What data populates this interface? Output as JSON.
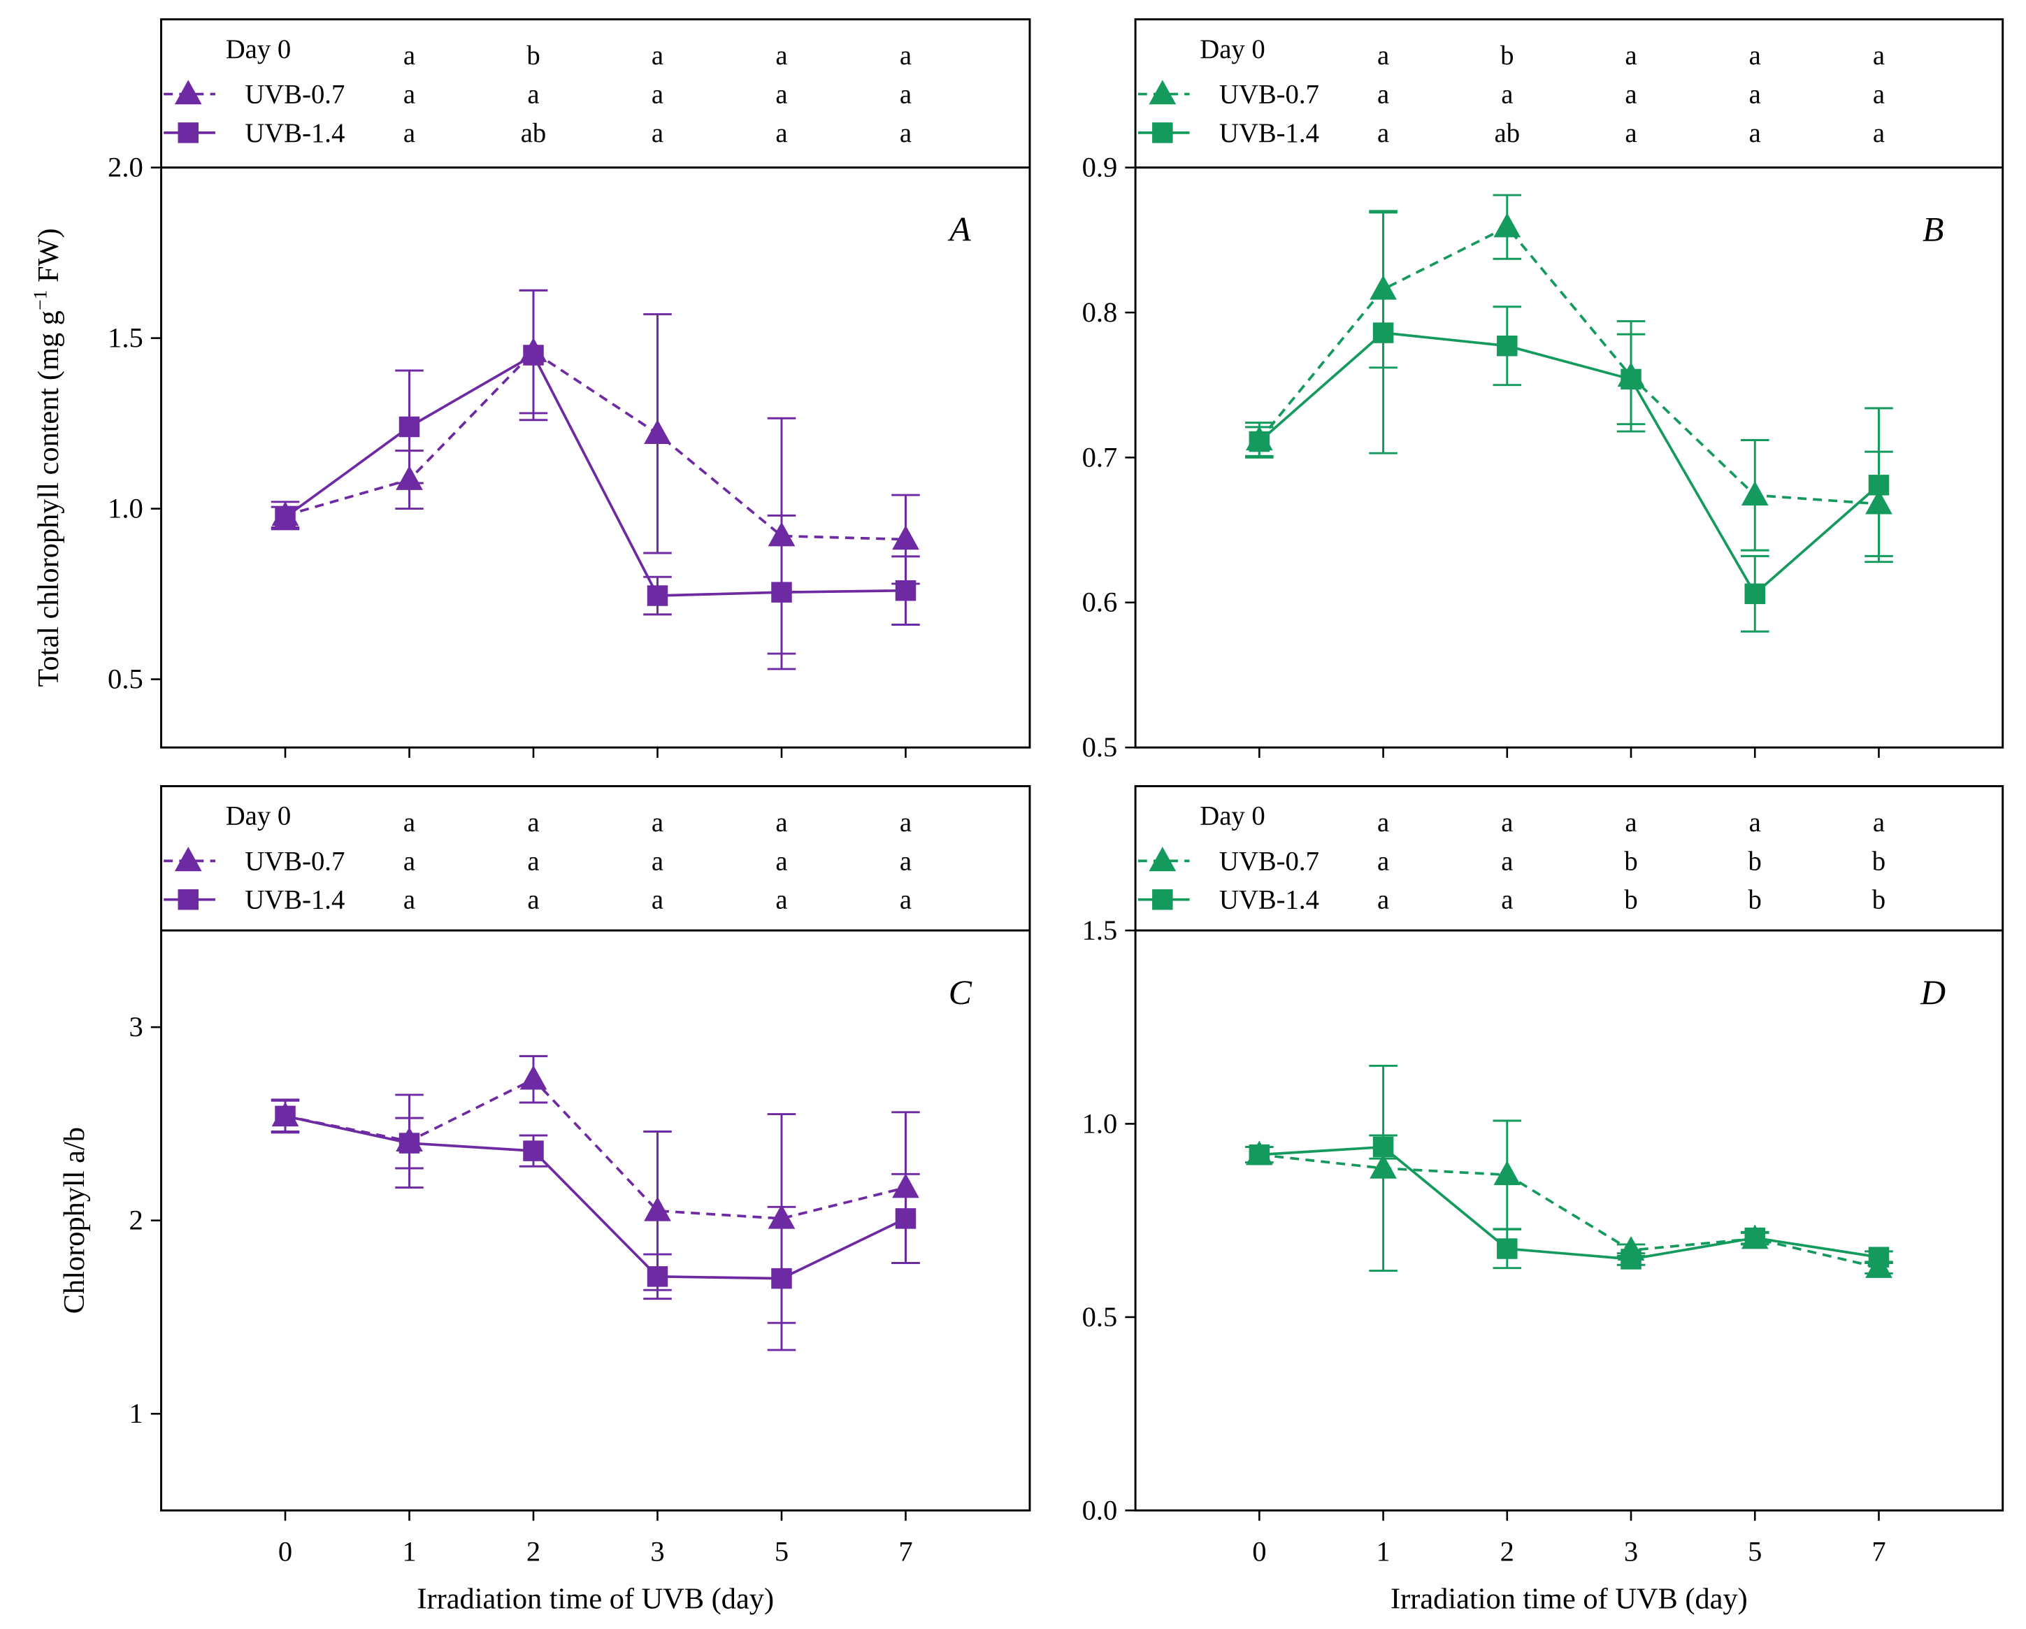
{
  "chart_data": [
    {
      "panel": "A",
      "type": "line",
      "ylabel_parts": [
        "Total chlorophyll content (mg g",
        "−1",
        " FW)"
      ],
      "ylim": [
        0.3,
        2.0
      ],
      "yticks": [
        "0.5",
        "1.0",
        "1.5",
        "2.0"
      ],
      "x": [
        0,
        1,
        2,
        3,
        5,
        7
      ],
      "header": {
        "day0_label": "Day 0",
        "day0_letters": [
          "a",
          "b",
          "a",
          "a",
          "a"
        ]
      },
      "series": [
        {
          "name": "UVB-0.7",
          "marker_icon": "triangle",
          "dashed": true,
          "color": "#6E2AA3",
          "values": [
            0.98,
            1.085,
            1.46,
            1.22,
            0.92,
            0.91
          ],
          "errors": [
            0.04,
            0.085,
            0.18,
            0.35,
            0.345,
            0.13
          ],
          "letters": [
            "a",
            "a",
            "a",
            "a",
            "a"
          ]
        },
        {
          "name": "UVB-1.4",
          "marker_icon": "square",
          "dashed": false,
          "color": "#6E2AA3",
          "values": [
            0.975,
            1.24,
            1.45,
            0.745,
            0.755,
            0.76
          ],
          "errors": [
            0.03,
            0.165,
            0.19,
            0.055,
            0.225,
            0.1
          ],
          "letters": [
            "a",
            "ab",
            "a",
            "a",
            "a"
          ]
        }
      ]
    },
    {
      "panel": "B",
      "type": "line",
      "ylim": [
        0.5,
        0.9
      ],
      "yticks": [
        "0.5",
        "0.6",
        "0.7",
        "0.8",
        "0.9"
      ],
      "x": [
        0,
        1,
        2,
        3,
        5,
        7
      ],
      "header": {
        "day0_label": "Day 0",
        "day0_letters": [
          "a",
          "b",
          "a",
          "a",
          "a"
        ]
      },
      "series": [
        {
          "name": "UVB-0.7",
          "marker_icon": "triangle",
          "dashed": true,
          "color": "#139A5C",
          "values": [
            0.712,
            0.816,
            0.859,
            0.756,
            0.674,
            0.668
          ],
          "errors": [
            0.012,
            0.054,
            0.022,
            0.038,
            0.038,
            0.036
          ],
          "letters": [
            "a",
            "a",
            "a",
            "a",
            "a"
          ]
        },
        {
          "name": "UVB-1.4",
          "marker_icon": "square",
          "dashed": false,
          "color": "#139A5C",
          "values": [
            0.711,
            0.786,
            0.777,
            0.754,
            0.606,
            0.681
          ],
          "errors": [
            0.01,
            0.083,
            0.027,
            0.031,
            0.026,
            0.053
          ],
          "letters": [
            "a",
            "ab",
            "a",
            "a",
            "a"
          ]
        }
      ]
    },
    {
      "panel": "C",
      "type": "line",
      "ylabel_parts": [
        "Chlorophyll a/b"
      ],
      "xlabel": "Irradiation time of UVB (day)",
      "ylim": [
        0.5,
        3.5
      ],
      "yticks": [
        "1",
        "2",
        "3"
      ],
      "x": [
        0,
        1,
        2,
        3,
        5,
        7
      ],
      "x_tick_labels": [
        "0",
        "1",
        "2",
        "3",
        "5",
        "7"
      ],
      "header": {
        "day0_label": "Day 0",
        "day0_letters": [
          "a",
          "a",
          "a",
          "a",
          "a"
        ]
      },
      "series": [
        {
          "name": "UVB-0.7",
          "marker_icon": "triangle",
          "dashed": true,
          "color": "#6E2AA3",
          "values": [
            2.54,
            2.41,
            2.73,
            2.05,
            2.01,
            2.17
          ],
          "errors": [
            0.085,
            0.24,
            0.12,
            0.41,
            0.54,
            0.39
          ],
          "letters": [
            "a",
            "a",
            "a",
            "a",
            "a"
          ]
        },
        {
          "name": "UVB-1.4",
          "marker_icon": "square",
          "dashed": false,
          "color": "#6E2AA3",
          "values": [
            2.54,
            2.4,
            2.36,
            1.71,
            1.7,
            2.01
          ],
          "errors": [
            0.08,
            0.13,
            0.08,
            0.115,
            0.37,
            0.23
          ],
          "letters": [
            "a",
            "a",
            "a",
            "a",
            "a"
          ]
        }
      ]
    },
    {
      "panel": "D",
      "type": "line",
      "xlabel": "Irradiation time of UVB (day)",
      "ylim": [
        0.0,
        1.5
      ],
      "yticks": [
        "0.0",
        "0.5",
        "1.0",
        "1.5"
      ],
      "x": [
        0,
        1,
        2,
        3,
        5,
        7
      ],
      "x_tick_labels": [
        "0",
        "1",
        "2",
        "3",
        "5",
        "7"
      ],
      "header": {
        "day0_label": "Day 0",
        "day0_letters": [
          "a",
          "a",
          "a",
          "a",
          "a"
        ]
      },
      "series": [
        {
          "name": "UVB-0.7",
          "marker_icon": "triangle",
          "dashed": true,
          "color": "#139A5C",
          "values": [
            0.92,
            0.885,
            0.868,
            0.673,
            0.703,
            0.628
          ],
          "errors": [
            0.02,
            0.265,
            0.14,
            0.015,
            0.015,
            0.015
          ],
          "letters": [
            "a",
            "a",
            "b",
            "b",
            "b"
          ]
        },
        {
          "name": "UVB-1.4",
          "marker_icon": "square",
          "dashed": false,
          "color": "#139A5C",
          "values": [
            0.92,
            0.94,
            0.677,
            0.65,
            0.705,
            0.655
          ],
          "errors": [
            0.02,
            0.03,
            0.05,
            0.015,
            0.015,
            0.015
          ],
          "letters": [
            "a",
            "a",
            "b",
            "b",
            "b"
          ]
        }
      ]
    }
  ]
}
